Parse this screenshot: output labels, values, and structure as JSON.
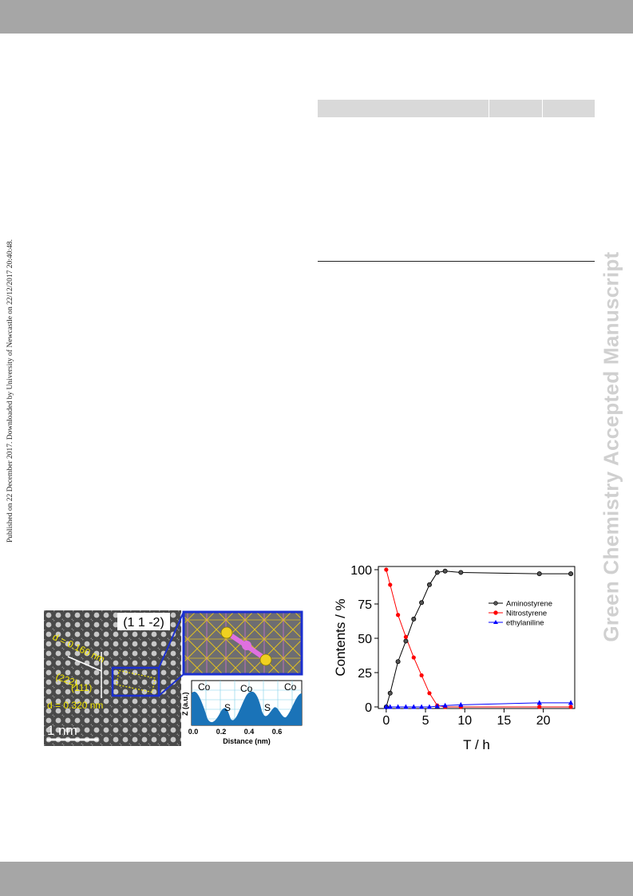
{
  "side_note": "Published on 22 December 2017. Downloaded by University of Newcastle on 22/12/2017 20:40:48.",
  "watermark": "Green Chemistry Accepted Manuscript",
  "hrtem": {
    "zone_label": "(1 1 -2)",
    "d_upper": "d = 0.160 nm",
    "plane_upper": "(222)",
    "plane_lower": "(111)",
    "d_lower": "d = 0.320 nm",
    "scale_bar": "1  nm"
  },
  "line_profile": {
    "ylabel": "Z (a.u.)",
    "xlabel": "Distance (nm)",
    "x_ticks": [
      "0.0",
      "0.2",
      "0.4",
      "0.6"
    ],
    "peak_labels": [
      "Co",
      "S",
      "Co",
      "S",
      "Co"
    ],
    "colors": {
      "fill": "#1a73b8",
      "grid": "#7fd0ea"
    }
  },
  "chart_data": {
    "type": "line",
    "xlabel": "T / h",
    "ylabel": "Contents / %",
    "xlim": [
      -1,
      24
    ],
    "ylim": [
      0,
      100
    ],
    "x_ticks": [
      0,
      5,
      10,
      15,
      20
    ],
    "y_ticks": [
      0,
      25,
      50,
      75,
      100
    ],
    "legend_position": "right",
    "series": [
      {
        "name": "Aminostyrene",
        "color": "#000000",
        "marker": "circle-open",
        "x": [
          0,
          0.5,
          1.5,
          2.5,
          3.5,
          4.5,
          5.5,
          6.5,
          7.5,
          9.5,
          19.5,
          23.5
        ],
        "y": [
          0,
          10,
          33,
          48,
          64,
          76,
          89,
          98,
          99,
          98,
          97,
          97
        ]
      },
      {
        "name": "Nitrostyrene",
        "color": "#ff0000",
        "marker": "circle",
        "x": [
          0,
          0.5,
          1.5,
          2.5,
          3.5,
          4.5,
          5.5,
          6.5,
          7.5,
          9.5,
          19.5,
          23.5
        ],
        "y": [
          100,
          89,
          67,
          51,
          36,
          23,
          10,
          1,
          0,
          0,
          0,
          0
        ]
      },
      {
        "name": "ethylaniline",
        "color": "#0000ff",
        "marker": "triangle",
        "x": [
          0,
          0.5,
          1.5,
          2.5,
          3.5,
          4.5,
          5.5,
          6.5,
          7.5,
          9.5,
          19.5,
          23.5
        ],
        "y": [
          0,
          0,
          0,
          0,
          0,
          0,
          0,
          0.5,
          1,
          1.5,
          3,
          3
        ]
      }
    ]
  }
}
